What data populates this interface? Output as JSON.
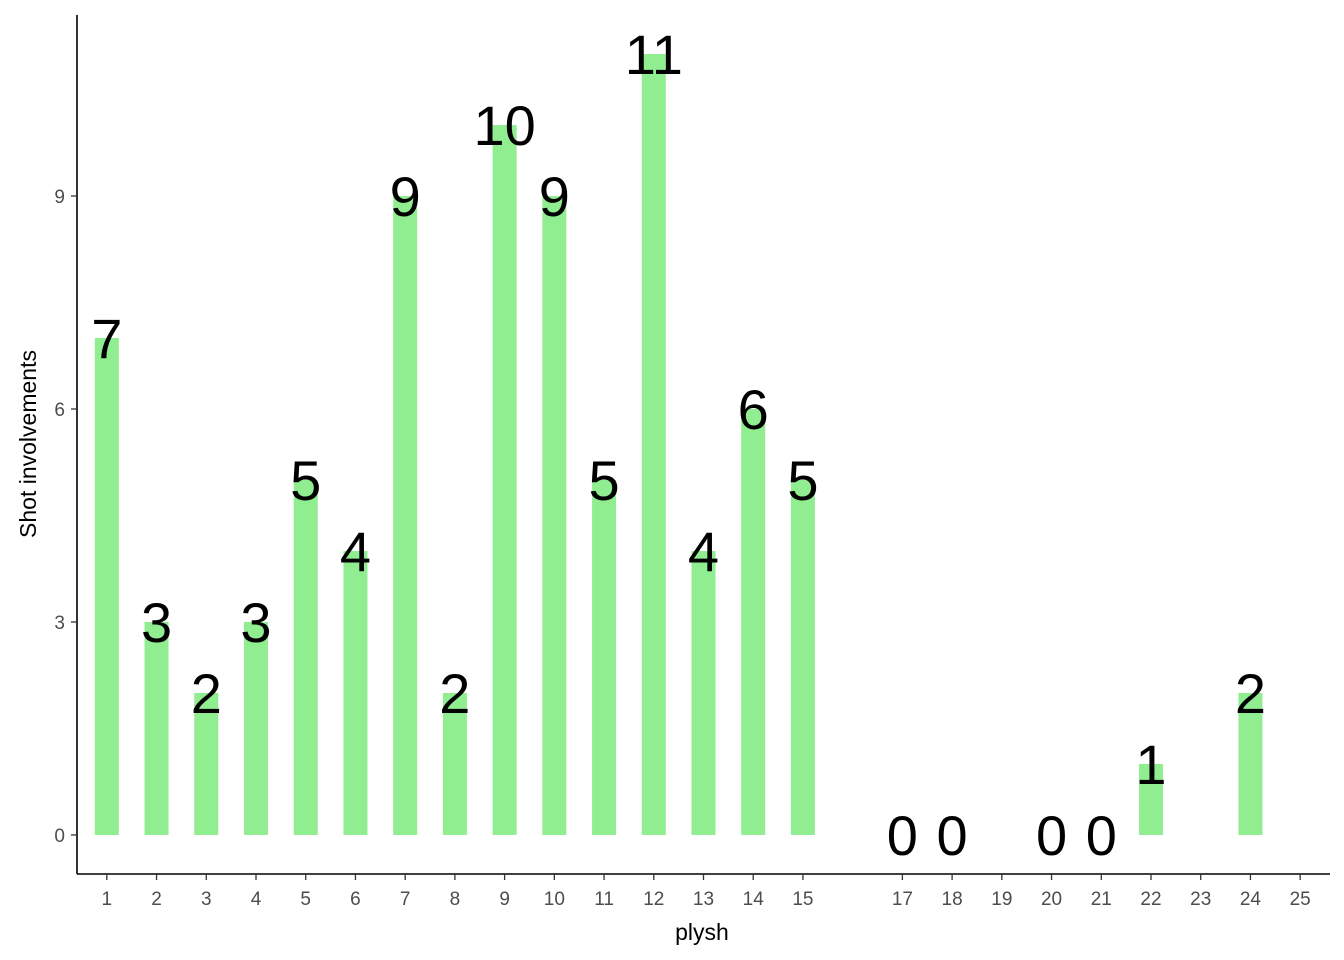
{
  "chart_data": {
    "type": "bar",
    "xlabel": "plysh",
    "ylabel": "Shot involvements",
    "x_ticks": [
      "1",
      "2",
      "3",
      "4",
      "5",
      "6",
      "7",
      "8",
      "9",
      "10",
      "11",
      "12",
      "13",
      "14",
      "15",
      "17",
      "18",
      "19",
      "20",
      "21",
      "22",
      "23",
      "24",
      "25"
    ],
    "y_ticks": [
      "0",
      "3",
      "6",
      "9"
    ],
    "ylim": [
      -0.55,
      11.55
    ],
    "bar_color": "#90EE90",
    "categories": [
      "1",
      "2",
      "3",
      "4",
      "5",
      "6",
      "7",
      "8",
      "9",
      "10",
      "11",
      "12",
      "13",
      "14",
      "15",
      "17",
      "18",
      "20",
      "21",
      "22",
      "24"
    ],
    "values": [
      7,
      3,
      2,
      3,
      5,
      4,
      9,
      2,
      10,
      9,
      5,
      11,
      4,
      6,
      5,
      0,
      0,
      0,
      0,
      1,
      2
    ],
    "grid": false,
    "legend": "none"
  }
}
